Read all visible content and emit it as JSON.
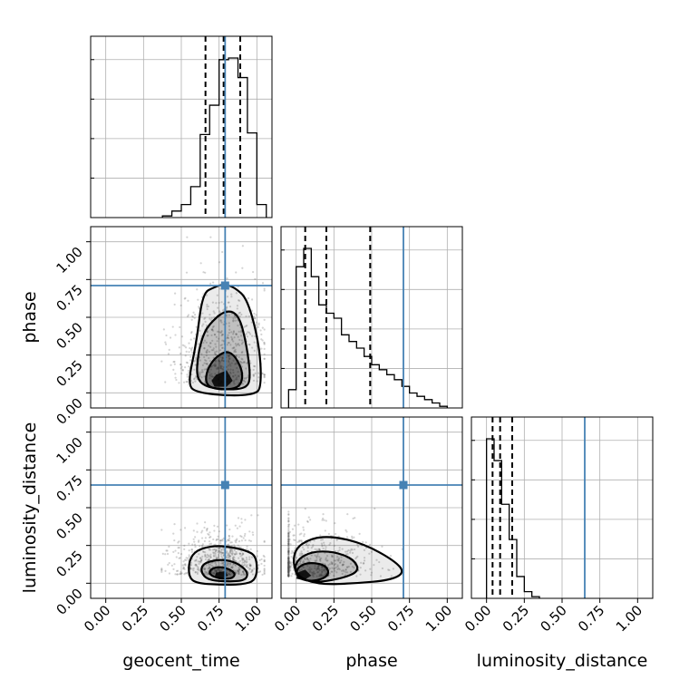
{
  "chart_data": {
    "type": "corner",
    "parameters": [
      "geocent_time",
      "phase",
      "luminosity_distance"
    ],
    "axis_range": [
      -0.1,
      1.1
    ],
    "ticks": [
      0.0,
      0.25,
      0.5,
      0.75,
      1.0
    ],
    "tick_labels": [
      "0.00",
      "0.25",
      "0.50",
      "0.75",
      "1.00"
    ],
    "grid": true,
    "truth_values": {
      "geocent_time": 0.79,
      "phase": 0.71,
      "luminosity_distance": 0.65
    },
    "truth_color": "#4682b4",
    "histograms": {
      "geocent_time": {
        "bin_edges": [
          0.375,
          0.4375,
          0.5,
          0.5625,
          0.625,
          0.6875,
          0.75,
          0.8125,
          0.875,
          0.9375,
          1.0,
          1.0625
        ],
        "counts": [
          0.01,
          0.04,
          0.08,
          0.19,
          0.51,
          0.69,
          0.97,
          0.98,
          0.86,
          0.52,
          0.08
        ],
        "quantiles": [
          0.66,
          0.78,
          0.89
        ]
      },
      "phase": {
        "bin_edges": [
          -0.05,
          0.0,
          0.05,
          0.1,
          0.15,
          0.2,
          0.25,
          0.3,
          0.35,
          0.4,
          0.45,
          0.5,
          0.55,
          0.6,
          0.65,
          0.7,
          0.75,
          0.8,
          0.85,
          0.9,
          0.95,
          1.0
        ],
        "counts": [
          0.11,
          0.85,
          0.96,
          0.79,
          0.62,
          0.57,
          0.54,
          0.44,
          0.4,
          0.36,
          0.31,
          0.26,
          0.23,
          0.2,
          0.17,
          0.13,
          0.09,
          0.07,
          0.05,
          0.03,
          0.01
        ],
        "quantiles": [
          0.06,
          0.2,
          0.49
        ]
      },
      "luminosity_distance": {
        "bin_edges": [
          0.0,
          0.05,
          0.1,
          0.15,
          0.2,
          0.25,
          0.3,
          0.35
        ],
        "counts": [
          0.95,
          0.82,
          0.56,
          0.35,
          0.13,
          0.04,
          0.01
        ],
        "quantiles": [
          0.04,
          0.09,
          0.17
        ]
      }
    },
    "joint_2d": [
      {
        "x": "geocent_time",
        "y": "phase",
        "scatter_x_range": [
          0.37,
          1.05
        ],
        "scatter_y_range": [
          -0.03,
          1.03
        ],
        "peak": [
          0.77,
          0.09
        ],
        "contours": [
          {
            "level": "outer",
            "x": [
              0.64,
              0.72,
              0.78,
              0.85,
              0.94,
              1.02,
              1.03,
              0.98,
              0.83,
              0.61,
              0.54,
              0.6
            ],
            "y": [
              0.66,
              0.7,
              0.72,
              0.7,
              0.62,
              0.3,
              0.03,
              -0.01,
              -0.02,
              0.0,
              0.05,
              0.33
            ]
          },
          {
            "level": "middle",
            "x": [
              0.68,
              0.79,
              0.88,
              0.93,
              0.96,
              0.93,
              0.8,
              0.66,
              0.6,
              0.61,
              0.64
            ],
            "y": [
              0.45,
              0.55,
              0.52,
              0.33,
              0.1,
              0.03,
              0.02,
              0.04,
              0.1,
              0.25,
              0.37
            ]
          },
          {
            "level": "inner",
            "x": [
              0.72,
              0.8,
              0.86,
              0.91,
              0.89,
              0.8,
              0.7,
              0.66,
              0.67
            ],
            "y": [
              0.23,
              0.28,
              0.24,
              0.13,
              0.04,
              0.02,
              0.03,
              0.07,
              0.15
            ]
          },
          {
            "level": "core",
            "x": [
              0.73,
              0.8,
              0.84,
              0.8,
              0.72,
              0.7
            ],
            "y": [
              0.12,
              0.15,
              0.08,
              0.04,
              0.04,
              0.08
            ]
          }
        ]
      },
      {
        "x": "geocent_time",
        "y": "luminosity_distance",
        "scatter_x_range": [
          0.37,
          1.05
        ],
        "scatter_y_range": [
          -0.02,
          0.45
        ],
        "peak": [
          0.76,
          0.07
        ],
        "contours": [
          {
            "level": "outer",
            "x": [
              0.6,
              0.72,
              0.82,
              0.92,
              1.0,
              1.0,
              0.9,
              0.75,
              0.6,
              0.55,
              0.55
            ],
            "y": [
              0.22,
              0.25,
              0.24,
              0.22,
              0.18,
              0.02,
              -0.01,
              -0.01,
              0.0,
              0.04,
              0.15
            ]
          },
          {
            "level": "middle",
            "x": [
              0.64,
              0.75,
              0.86,
              0.94,
              0.93,
              0.82,
              0.68,
              0.63
            ],
            "y": [
              0.13,
              0.16,
              0.14,
              0.08,
              0.02,
              0.01,
              0.02,
              0.07
            ]
          },
          {
            "level": "inner",
            "x": [
              0.7,
              0.78,
              0.86,
              0.84,
              0.75,
              0.68
            ],
            "y": [
              0.1,
              0.11,
              0.07,
              0.03,
              0.03,
              0.06
            ]
          },
          {
            "level": "core",
            "x": [
              0.73,
              0.79,
              0.81,
              0.76,
              0.72
            ],
            "y": [
              0.07,
              0.08,
              0.05,
              0.03,
              0.04
            ]
          }
        ]
      },
      {
        "x": "phase",
        "y": "luminosity_distance",
        "scatter_x_range": [
          -0.05,
          1.0
        ],
        "scatter_y_range": [
          -0.02,
          0.5
        ],
        "peak": [
          0.04,
          0.06
        ],
        "contours": [
          {
            "level": "outer",
            "x": [
              -0.02,
              0.1,
              0.25,
              0.45,
              0.65,
              0.72,
              0.62,
              0.4,
              0.15,
              -0.01
            ],
            "y": [
              0.22,
              0.3,
              0.31,
              0.26,
              0.15,
              0.07,
              0.02,
              0.0,
              -0.01,
              0.05
            ]
          },
          {
            "level": "middle",
            "x": [
              0.0,
              0.1,
              0.25,
              0.38,
              0.42,
              0.3,
              0.1,
              -0.01
            ],
            "y": [
              0.15,
              0.21,
              0.21,
              0.16,
              0.08,
              0.03,
              0.0,
              0.06
            ]
          },
          {
            "level": "inner",
            "x": [
              0.0,
              0.08,
              0.2,
              0.22,
              0.12,
              0.01
            ],
            "y": [
              0.1,
              0.14,
              0.12,
              0.05,
              0.01,
              0.03
            ]
          },
          {
            "level": "core",
            "x": [
              0.01,
              0.06,
              0.1,
              0.05,
              0.0
            ],
            "y": [
              0.07,
              0.09,
              0.05,
              0.02,
              0.03
            ]
          }
        ]
      }
    ]
  }
}
